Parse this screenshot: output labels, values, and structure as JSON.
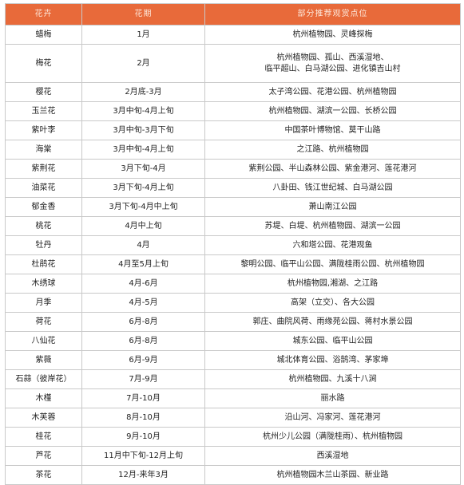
{
  "header": {
    "flower": "花卉",
    "period": "花期",
    "spots": "部分推荐观赏点位"
  },
  "rows": [
    {
      "flower": "蜡梅",
      "period": "1月",
      "spots": [
        "杭州植物园、灵峰探梅"
      ]
    },
    {
      "flower": "梅花",
      "period": "2月",
      "spots": [
        "杭州植物园、孤山、西溪湿地、",
        "临平超山、白马湖公园、进化镇吉山村"
      ]
    },
    {
      "flower": "樱花",
      "period": "2月底-3月",
      "spots": [
        "太子湾公园、花港公园、杭州植物园"
      ]
    },
    {
      "flower": "玉兰花",
      "period": "3月中旬-4月上旬",
      "spots": [
        "杭州植物园、湖滨一公园、长桥公园"
      ]
    },
    {
      "flower": "紫叶李",
      "period": "3月中旬-3月下旬",
      "spots": [
        "中国茶叶博物馆、莫干山路"
      ]
    },
    {
      "flower": "海棠",
      "period": "3月中旬-4月上旬",
      "spots": [
        "之江路、杭州植物园"
      ]
    },
    {
      "flower": "紫荆花",
      "period": "3月下旬-4月",
      "spots": [
        "紫荆公园、半山森林公园、紫金港河、莲花港河"
      ]
    },
    {
      "flower": "油菜花",
      "period": "3月下旬-4月上旬",
      "spots": [
        "八卦田、钱江世纪城、白马湖公园"
      ]
    },
    {
      "flower": "郁金香",
      "period": "3月下旬-4月中上旬",
      "spots": [
        "萧山南江公园"
      ]
    },
    {
      "flower": "桃花",
      "period": "4月中上旬",
      "spots": [
        "苏堤、白堤、杭州植物园、湖滨一公园"
      ]
    },
    {
      "flower": "牡丹",
      "period": "4月",
      "spots": [
        "六和塔公园、花港观鱼"
      ]
    },
    {
      "flower": "杜鹃花",
      "period": "4月至5月上旬",
      "spots": [
        "黎明公园、临平山公园、满陇桂雨公园、杭州植物园"
      ]
    },
    {
      "flower": "木绣球",
      "period": "4月-6月",
      "spots": [
        "杭州植物园,湘湖、之江路"
      ]
    },
    {
      "flower": "月季",
      "period": "4月-5月",
      "spots": [
        "高架（立交）、各大公园"
      ]
    },
    {
      "flower": "荷花",
      "period": "6月-8月",
      "spots": [
        "郭庄、曲院风荷、雨缘苑公园、蒋村水景公园"
      ]
    },
    {
      "flower": "八仙花",
      "period": "6月-8月",
      "spots": [
        "城东公园、临平山公园"
      ]
    },
    {
      "flower": "紫薇",
      "period": "6月-9月",
      "spots": [
        "城北体育公园、浴鹄湾、茅家埠"
      ]
    },
    {
      "flower": "石蒜（彼岸花）",
      "period": "7月-9月",
      "spots": [
        "杭州植物园、九溪十八涧"
      ]
    },
    {
      "flower": "木槿",
      "period": "7月-10月",
      "spots": [
        "丽水路"
      ]
    },
    {
      "flower": "木芙蓉",
      "period": "8月-10月",
      "spots": [
        "沿山河、冯家河、莲花港河"
      ]
    },
    {
      "flower": "桂花",
      "period": "9月-10月",
      "spots": [
        "杭州少儿公园（满陇桂雨）、杭州植物园"
      ]
    },
    {
      "flower": "芦花",
      "period": "11月中下旬-12月上旬",
      "spots": [
        "西溪湿地"
      ]
    },
    {
      "flower": "茶花",
      "period": "12月-来年3月",
      "spots": [
        "杭州植物园木兰山茶园、新业路"
      ]
    }
  ]
}
